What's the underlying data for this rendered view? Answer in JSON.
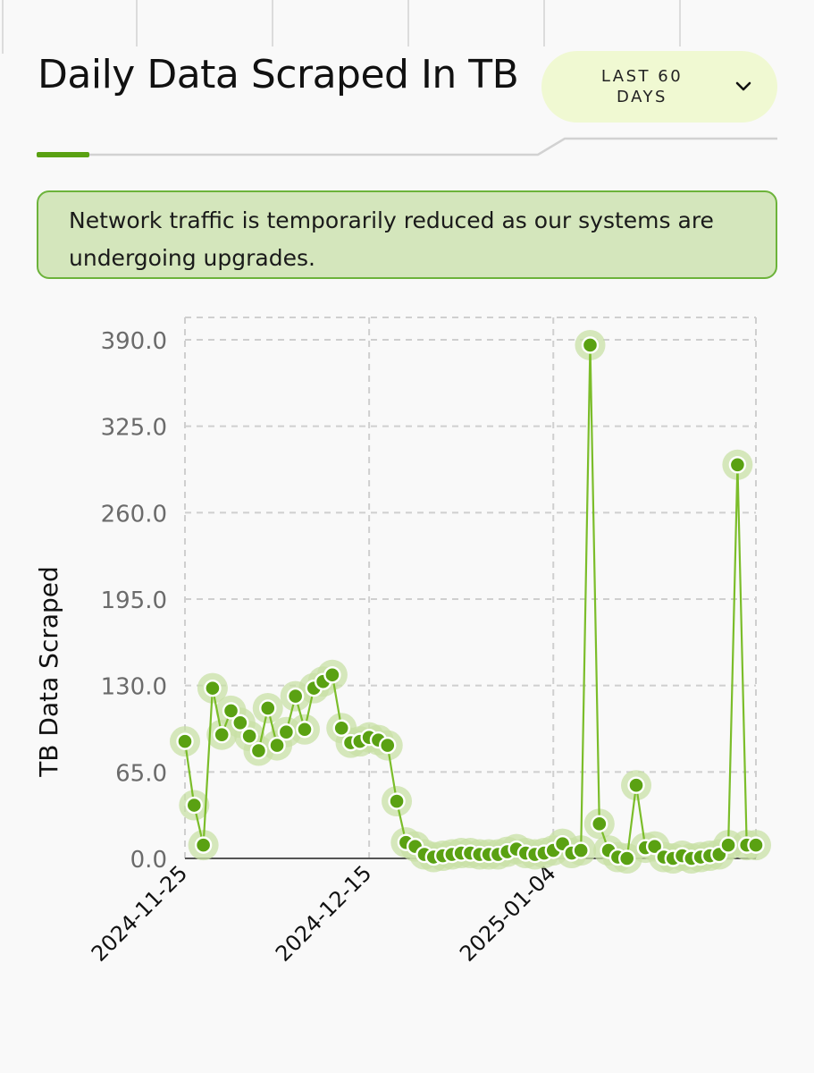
{
  "header": {
    "title": "Daily Data Scraped In TB",
    "range_select": {
      "label": "LAST 60 DAYS"
    }
  },
  "notice": {
    "text": "Network traffic is temporarily reduced as our systems are undergoing upgrades."
  },
  "colors": {
    "accent": "#5aa112",
    "line": "#7bbd2a",
    "halo": "#c8e0a6",
    "notice_bg": "#d4e6bc",
    "notice_border": "#6cb33a",
    "select_bg": "#f0f9d2"
  },
  "icons": {
    "range_toggle": "chevron-down-icon"
  },
  "chart_data": {
    "type": "line",
    "title": "",
    "xlabel": "",
    "ylabel": "TB Data Scraped",
    "ylim": [
      0,
      390
    ],
    "y_ticks": [
      "0.0",
      "65.0",
      "130.0",
      "195.0",
      "260.0",
      "325.0",
      "390.0"
    ],
    "x_ticks": [
      "2024-11-25",
      "2024-12-15",
      "2025-01-04"
    ],
    "grid": true,
    "series": [
      {
        "x": [
          "2024-11-25",
          "2024-11-26",
          "2024-11-27",
          "2024-11-28",
          "2024-11-29",
          "2024-11-30",
          "2024-12-01",
          "2024-12-02",
          "2024-12-03",
          "2024-12-04",
          "2024-12-05",
          "2024-12-06",
          "2024-12-07",
          "2024-12-08",
          "2024-12-09",
          "2024-12-10",
          "2024-12-11",
          "2024-12-12",
          "2024-12-13",
          "2024-12-14",
          "2024-12-15",
          "2024-12-16",
          "2024-12-17",
          "2024-12-18",
          "2024-12-19",
          "2024-12-20",
          "2024-12-21",
          "2024-12-22",
          "2024-12-23",
          "2024-12-24",
          "2024-12-25",
          "2024-12-26",
          "2024-12-27",
          "2024-12-28",
          "2024-12-29",
          "2024-12-30",
          "2024-12-31",
          "2025-01-01",
          "2025-01-02",
          "2025-01-03",
          "2025-01-04",
          "2025-01-05",
          "2025-01-06",
          "2025-01-07",
          "2025-01-08",
          "2025-01-09",
          "2025-01-10",
          "2025-01-11",
          "2025-01-12",
          "2025-01-13",
          "2025-01-14",
          "2025-01-15",
          "2025-01-16",
          "2025-01-17",
          "2025-01-18",
          "2025-01-19",
          "2025-01-20",
          "2025-01-21",
          "2025-01-22",
          "2025-01-23",
          "2025-01-24",
          "2025-01-25",
          "2025-01-26"
        ],
        "values": [
          88,
          40,
          10,
          128,
          93,
          111,
          102,
          92,
          81,
          113,
          85,
          95,
          122,
          97,
          128,
          133,
          138,
          98,
          87,
          88,
          91,
          89,
          85,
          43,
          12,
          9,
          3,
          1,
          2,
          3,
          4,
          4,
          3,
          3,
          3,
          5,
          7,
          4,
          3,
          4,
          6,
          11,
          4,
          6,
          386,
          26,
          6,
          1,
          0,
          55,
          8,
          9,
          1,
          0,
          2,
          0,
          1,
          2,
          3,
          10,
          296,
          10,
          10
        ]
      }
    ]
  }
}
